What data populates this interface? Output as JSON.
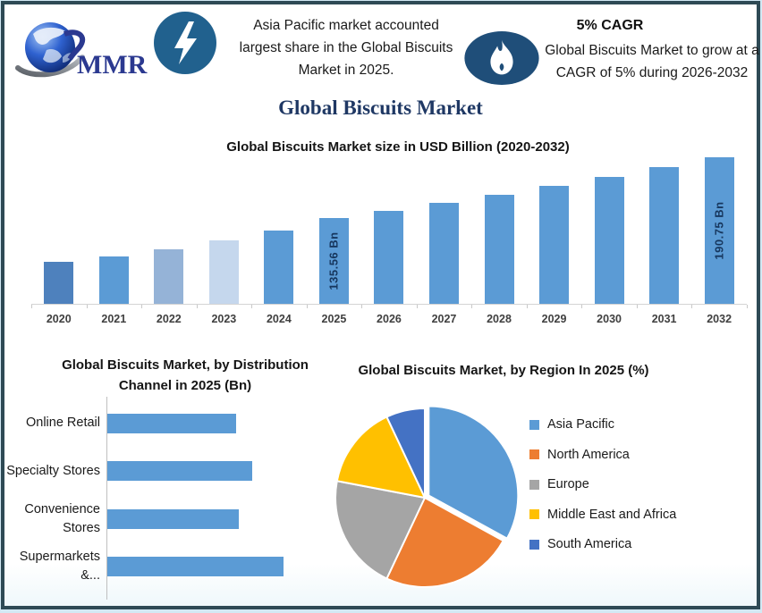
{
  "frame": {
    "border_color": "#2E4A55",
    "outer_edge_color": "#D3E9F4",
    "background": "#FFFFFF"
  },
  "header": {
    "logo": {
      "text": "MMR",
      "icon": "globe-icon",
      "text_color": "#2B3990"
    },
    "icons": {
      "left_badge": "lightning-icon",
      "right_badge": "flame-icon"
    },
    "lightning_badge_color": "#21618E",
    "flame_badge_color": "#1F4E79",
    "highlight_left": "Asia Pacific market accounted largest share in the Global Biscuits Market in 2025.",
    "cagr_label": "5% CAGR",
    "highlight_right": "Global Biscuits Market to grow at a CAGR of 5% during 2026-2032"
  },
  "main_title": "Global Biscuits Market",
  "chart_data": [
    {
      "id": "market-size",
      "type": "bar",
      "title": "Global Biscuits Market size in USD Billion (2020-2032)",
      "categories": [
        "2020",
        "2021",
        "2022",
        "2023",
        "2024",
        "2025",
        "2026",
        "2027",
        "2028",
        "2029",
        "2030",
        "2031",
        "2032"
      ],
      "values": [
        95.2,
        100.1,
        106.5,
        115.0,
        124.0,
        135.56,
        142.34,
        149.46,
        156.93,
        164.78,
        173.02,
        181.67,
        190.75
      ],
      "bar_labels": [
        "",
        "",
        "",
        "",
        "",
        "135.56 Bn",
        "",
        "",
        "",
        "",
        "",
        "",
        "190.75 Bn"
      ],
      "bar_colors": [
        "#4E81BD",
        "#5B9BD5",
        "#95B3D7",
        "#C5D7ED",
        "#5B9BD5",
        "#5B9BD5",
        "#5B9BD5",
        "#5B9BD5",
        "#5B9BD5",
        "#5B9BD5",
        "#5B9BD5",
        "#5B9BD5",
        "#5B9BD5"
      ],
      "xlabel": "",
      "ylabel": "USD Billion",
      "ylim": [
        57,
        200
      ],
      "grid": false,
      "axis_line_color": "#D4D4D4",
      "value_label_color": "#17375E"
    },
    {
      "id": "distribution-channel",
      "type": "bar",
      "orientation": "horizontal",
      "title": "Global Biscuits Market, by Distribution Channel in 2025 (Bn)",
      "categories": [
        "Online Retail",
        "Specialty Stores",
        "Convenience Stores",
        "Supermarkets &..."
      ],
      "values": [
        30.1,
        33.8,
        30.7,
        41.0
      ],
      "xlim": [
        0,
        45
      ],
      "bar_color": "#5B9BD5",
      "axis_line_color": "#BFBFBF",
      "grid": false
    },
    {
      "id": "region-share",
      "type": "pie",
      "title": "Global Biscuits Market, by Region In 2025 (%)",
      "labels": [
        "Asia Pacific",
        "North America",
        "Europe",
        "Middle East and Africa",
        "South America"
      ],
      "values": [
        33,
        24,
        21,
        15,
        7
      ],
      "colors": [
        "#5B9BD5",
        "#ED7D31",
        "#A5A5A5",
        "#FFC000",
        "#4472C4"
      ],
      "legend_position": "right",
      "start_angle_deg": 0,
      "exploded_slice": "Asia Pacific",
      "slice_border_color": "#FFFFFF"
    }
  ]
}
